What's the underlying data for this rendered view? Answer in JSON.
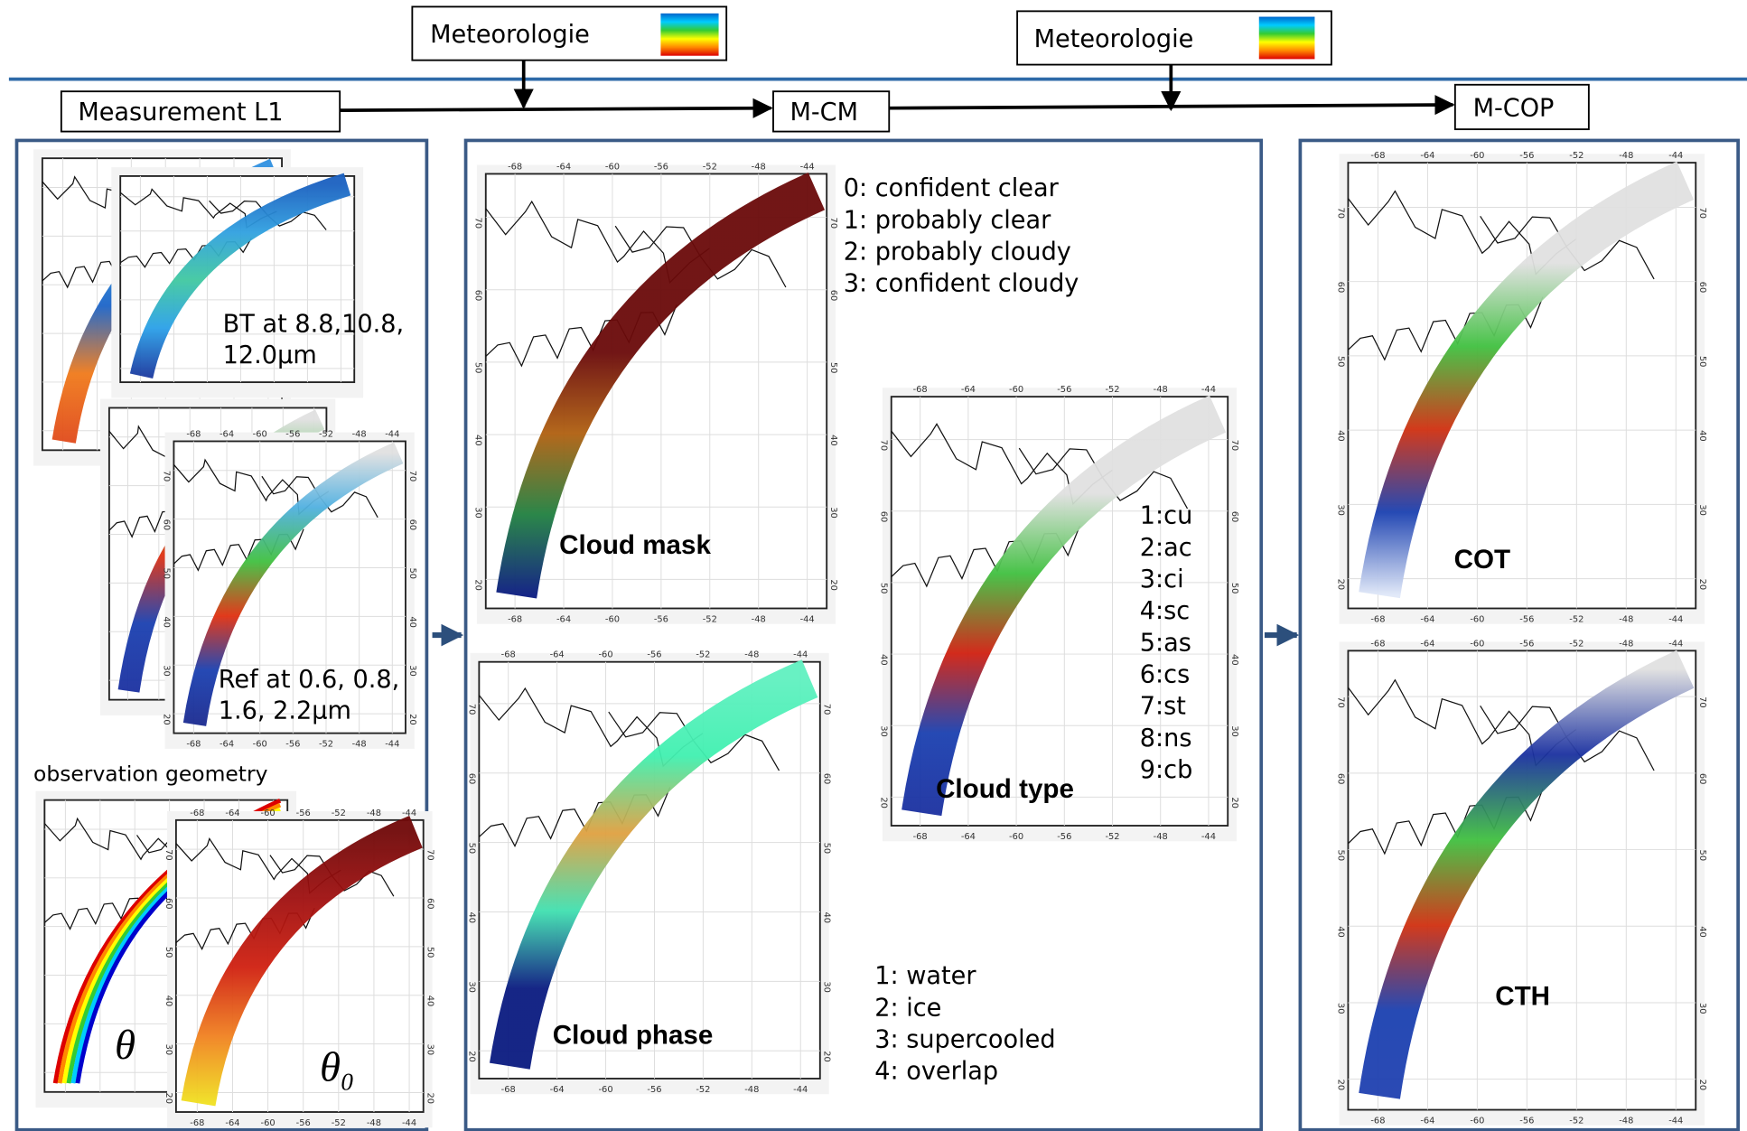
{
  "header": {
    "meteorologie_1": "Meteorologie",
    "meteorologie_2": "Meteorologie"
  },
  "flow": {
    "input": "Measurement L1",
    "cloud_mask_module": "M-CM",
    "cloud_properties_module": "M-COP"
  },
  "inputs": {
    "bt_label_1": "BT at 8.8,10.8,",
    "bt_label_2": "12.0μm",
    "ref_label_1": "Ref at 0.6, 0.8,",
    "ref_label_2": "1.6, 2.2μm",
    "geometry_title": "observation geometry",
    "theta": "θ",
    "theta0_symbol": "θ",
    "theta0_sub": "0"
  },
  "cloud_mask": {
    "title": "Cloud mask",
    "legend": [
      "0:  confident clear",
      "1:  probably clear",
      "2:  probably cloudy",
      "3:  confident cloudy"
    ]
  },
  "cloud_phase": {
    "title": "Cloud phase",
    "legend": [
      "1:  water",
      "2:  ice",
      "3:  supercooled",
      "4:  overlap"
    ]
  },
  "cloud_type": {
    "title": "Cloud type",
    "legend": [
      "1:cu",
      "2:ac",
      "3:ci",
      "4:sc",
      "5:as",
      "6:cs",
      "7:st",
      "8:ns",
      "9:cb"
    ]
  },
  "outputs": {
    "cot": "COT",
    "cth": "CTH"
  },
  "map_axes": {
    "lon_ticks": [
      -68,
      -64,
      -60,
      -56,
      -52,
      -48,
      -44
    ],
    "lat_ticks": [
      20,
      30,
      40,
      50,
      60,
      70
    ]
  }
}
